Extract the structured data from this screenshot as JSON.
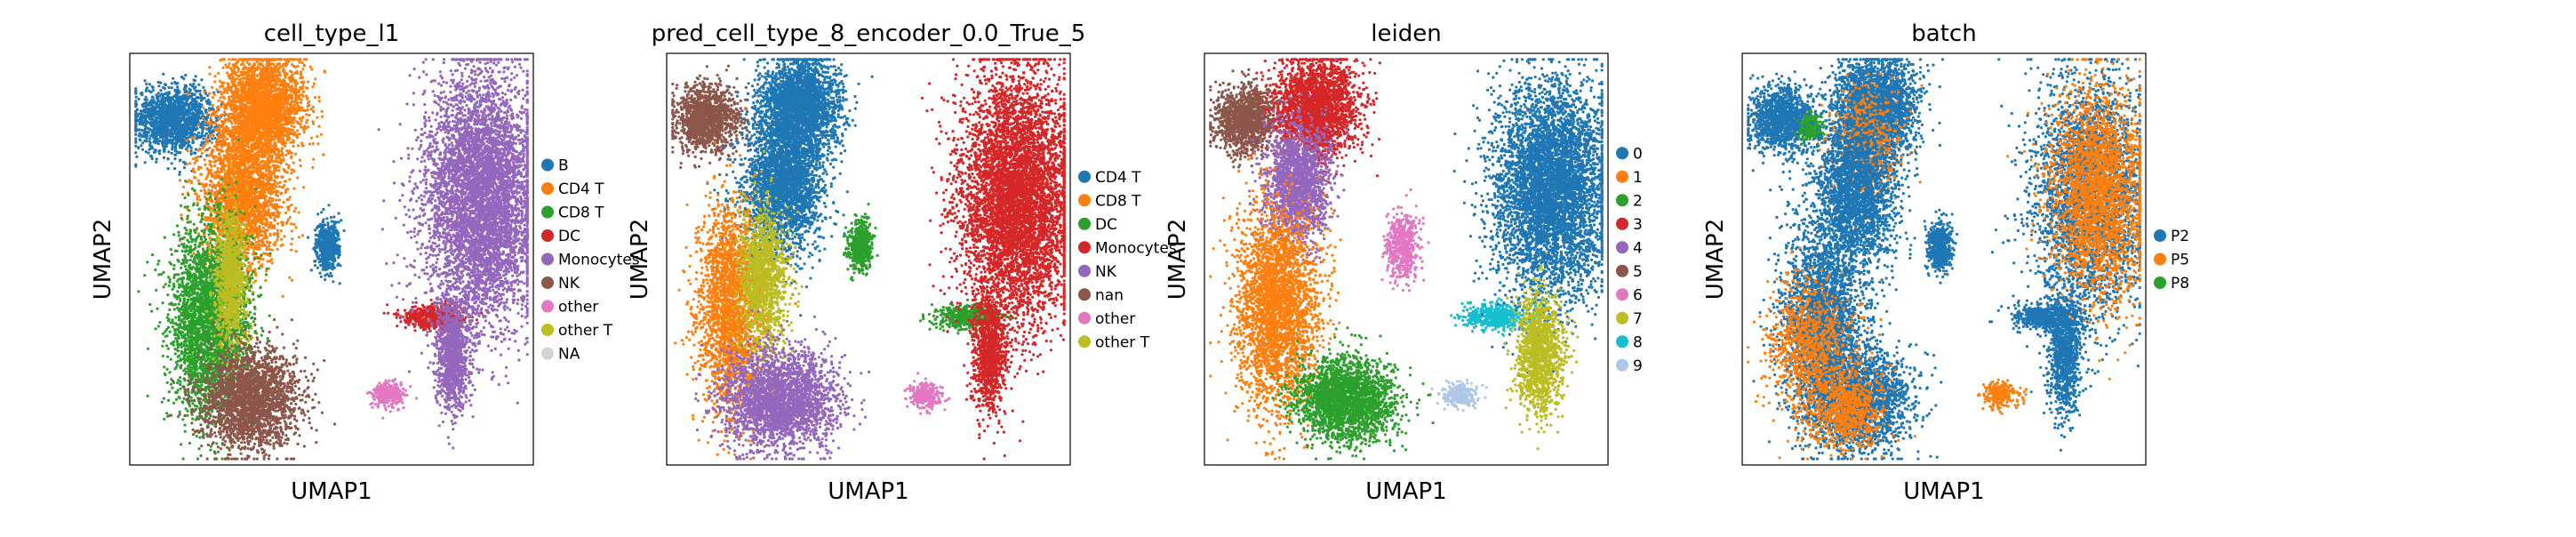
{
  "chart_data": [
    {
      "type": "scatter",
      "title": "cell_type_l1",
      "xlabel": "UMAP1",
      "ylabel": "UMAP2",
      "legend_position": "right",
      "categories": [
        "B",
        "CD4 T",
        "CD8 T",
        "DC",
        "Monocytes",
        "NK",
        "other",
        "other T",
        "NA"
      ],
      "colors": [
        "#1f77b4",
        "#ff7f0e",
        "#2ca02c",
        "#d62728",
        "#9467bd",
        "#8c564b",
        "#e377c2",
        "#bcbd22",
        "#d3d3d3"
      ],
      "clusters": [
        {
          "category": "B",
          "center": [
            0.11,
            0.84
          ],
          "spread": [
            0.05,
            0.04
          ],
          "weight": 6
        },
        {
          "category": "CD4 T",
          "center": [
            0.33,
            0.87
          ],
          "spread": [
            0.05,
            0.06
          ],
          "weight": 10
        },
        {
          "category": "CD4 T",
          "center": [
            0.28,
            0.66
          ],
          "spread": [
            0.05,
            0.09
          ],
          "weight": 10
        },
        {
          "category": "CD8 T",
          "center": [
            0.2,
            0.35
          ],
          "spread": [
            0.05,
            0.12
          ],
          "weight": 12
        },
        {
          "category": "other T",
          "center": [
            0.25,
            0.45
          ],
          "spread": [
            0.02,
            0.08
          ],
          "weight": 4
        },
        {
          "category": "NK",
          "center": [
            0.3,
            0.16
          ],
          "spread": [
            0.06,
            0.06
          ],
          "weight": 9
        },
        {
          "category": "B",
          "center": [
            0.49,
            0.53
          ],
          "spread": [
            0.015,
            0.03
          ],
          "weight": 2
        },
        {
          "category": "DC",
          "center": [
            0.75,
            0.36
          ],
          "spread": [
            0.04,
            0.015
          ],
          "weight": 2
        },
        {
          "category": "other",
          "center": [
            0.64,
            0.17
          ],
          "spread": [
            0.02,
            0.015
          ],
          "weight": 1
        },
        {
          "category": "Monocytes",
          "center": [
            0.87,
            0.65
          ],
          "spread": [
            0.07,
            0.15
          ],
          "weight": 22
        },
        {
          "category": "Monocytes",
          "center": [
            0.8,
            0.27
          ],
          "spread": [
            0.02,
            0.07
          ],
          "weight": 4
        }
      ]
    },
    {
      "type": "scatter",
      "title": "pred_cell_type_8_encoder_0.0_True_5",
      "xlabel": "UMAP1",
      "ylabel": "UMAP2",
      "legend_position": "right",
      "categories": [
        "CD4 T",
        "CD8 T",
        "DC",
        "Monocytes",
        "NK",
        "nan",
        "other",
        "other T"
      ],
      "colors": [
        "#1f77b4",
        "#ff7f0e",
        "#2ca02c",
        "#d62728",
        "#9467bd",
        "#8c564b",
        "#e377c2",
        "#bcbd22"
      ],
      "clusters": [
        {
          "category": "nan",
          "center": [
            0.1,
            0.84
          ],
          "spread": [
            0.04,
            0.04
          ],
          "weight": 5
        },
        {
          "category": "CD4 T",
          "center": [
            0.33,
            0.87
          ],
          "spread": [
            0.05,
            0.06
          ],
          "weight": 10
        },
        {
          "category": "CD4 T",
          "center": [
            0.29,
            0.68
          ],
          "spread": [
            0.05,
            0.08
          ],
          "weight": 10
        },
        {
          "category": "CD8 T",
          "center": [
            0.16,
            0.38
          ],
          "spread": [
            0.04,
            0.12
          ],
          "weight": 9
        },
        {
          "category": "other T",
          "center": [
            0.24,
            0.45
          ],
          "spread": [
            0.03,
            0.09
          ],
          "weight": 5
        },
        {
          "category": "NK",
          "center": [
            0.28,
            0.16
          ],
          "spread": [
            0.07,
            0.06
          ],
          "weight": 10
        },
        {
          "category": "DC",
          "center": [
            0.48,
            0.53
          ],
          "spread": [
            0.015,
            0.03
          ],
          "weight": 2
        },
        {
          "category": "DC",
          "center": [
            0.75,
            0.36
          ],
          "spread": [
            0.04,
            0.015
          ],
          "weight": 2
        },
        {
          "category": "other",
          "center": [
            0.64,
            0.17
          ],
          "spread": [
            0.02,
            0.015
          ],
          "weight": 1
        },
        {
          "category": "Monocytes",
          "center": [
            0.87,
            0.65
          ],
          "spread": [
            0.07,
            0.15
          ],
          "weight": 22
        },
        {
          "category": "Monocytes",
          "center": [
            0.8,
            0.27
          ],
          "spread": [
            0.02,
            0.07
          ],
          "weight": 4
        }
      ]
    },
    {
      "type": "scatter",
      "title": "leiden",
      "xlabel": "UMAP1",
      "ylabel": "UMAP2",
      "legend_position": "right",
      "categories": [
        "0",
        "1",
        "2",
        "3",
        "4",
        "5",
        "6",
        "7",
        "8",
        "9"
      ],
      "colors": [
        "#1f77b4",
        "#ff7f0e",
        "#2ca02c",
        "#d62728",
        "#9467bd",
        "#8c564b",
        "#e377c2",
        "#bcbd22",
        "#17becf",
        "#aec7e8"
      ],
      "clusters": [
        {
          "category": "5",
          "center": [
            0.1,
            0.84
          ],
          "spread": [
            0.04,
            0.04
          ],
          "weight": 5
        },
        {
          "category": "3",
          "center": [
            0.28,
            0.87
          ],
          "spread": [
            0.05,
            0.06
          ],
          "weight": 9
        },
        {
          "category": "4",
          "center": [
            0.23,
            0.68
          ],
          "spread": [
            0.04,
            0.07
          ],
          "weight": 7
        },
        {
          "category": "1",
          "center": [
            0.18,
            0.38
          ],
          "spread": [
            0.05,
            0.12
          ],
          "weight": 11
        },
        {
          "category": "2",
          "center": [
            0.35,
            0.16
          ],
          "spread": [
            0.06,
            0.05
          ],
          "weight": 9
        },
        {
          "category": "6",
          "center": [
            0.49,
            0.53
          ],
          "spread": [
            0.02,
            0.04
          ],
          "weight": 2
        },
        {
          "category": "8",
          "center": [
            0.72,
            0.36
          ],
          "spread": [
            0.04,
            0.015
          ],
          "weight": 2
        },
        {
          "category": "9",
          "center": [
            0.63,
            0.17
          ],
          "spread": [
            0.02,
            0.015
          ],
          "weight": 1
        },
        {
          "category": "0",
          "center": [
            0.86,
            0.67
          ],
          "spread": [
            0.07,
            0.13
          ],
          "weight": 20
        },
        {
          "category": "7",
          "center": [
            0.83,
            0.27
          ],
          "spread": [
            0.03,
            0.07
          ],
          "weight": 5
        }
      ]
    },
    {
      "type": "scatter",
      "title": "batch",
      "xlabel": "UMAP1",
      "ylabel": "UMAP2",
      "legend_position": "right",
      "categories": [
        "P2",
        "P5",
        "P8"
      ],
      "colors": [
        "#1f77b4",
        "#ff7f0e",
        "#2ca02c"
      ],
      "clusters": [
        {
          "category": "P2",
          "center": [
            0.1,
            0.84
          ],
          "spread": [
            0.04,
            0.04
          ],
          "weight": 5
        },
        {
          "category": "P8",
          "center": [
            0.17,
            0.82
          ],
          "spread": [
            0.015,
            0.015
          ],
          "weight": 1
        },
        {
          "category": "P2",
          "center": [
            0.33,
            0.87
          ],
          "spread": [
            0.05,
            0.06
          ],
          "weight": 10
        },
        {
          "category": "P5",
          "center": [
            0.31,
            0.78
          ],
          "spread": [
            0.04,
            0.06
          ],
          "weight": 3
        },
        {
          "category": "P2",
          "center": [
            0.28,
            0.66
          ],
          "spread": [
            0.05,
            0.09
          ],
          "weight": 9
        },
        {
          "category": "P2",
          "center": [
            0.2,
            0.35
          ],
          "spread": [
            0.05,
            0.12
          ],
          "weight": 10
        },
        {
          "category": "P5",
          "center": [
            0.17,
            0.28
          ],
          "spread": [
            0.05,
            0.08
          ],
          "weight": 4
        },
        {
          "category": "P2",
          "center": [
            0.3,
            0.16
          ],
          "spread": [
            0.06,
            0.06
          ],
          "weight": 7
        },
        {
          "category": "P5",
          "center": [
            0.26,
            0.14
          ],
          "spread": [
            0.05,
            0.05
          ],
          "weight": 3
        },
        {
          "category": "P2",
          "center": [
            0.49,
            0.53
          ],
          "spread": [
            0.015,
            0.03
          ],
          "weight": 2
        },
        {
          "category": "P2",
          "center": [
            0.75,
            0.36
          ],
          "spread": [
            0.04,
            0.015
          ],
          "weight": 2
        },
        {
          "category": "P5",
          "center": [
            0.64,
            0.17
          ],
          "spread": [
            0.02,
            0.015
          ],
          "weight": 1
        },
        {
          "category": "P2",
          "center": [
            0.86,
            0.66
          ],
          "spread": [
            0.07,
            0.14
          ],
          "weight": 12
        },
        {
          "category": "P5",
          "center": [
            0.88,
            0.66
          ],
          "spread": [
            0.06,
            0.13
          ],
          "weight": 10
        },
        {
          "category": "P2",
          "center": [
            0.8,
            0.27
          ],
          "spread": [
            0.02,
            0.07
          ],
          "weight": 4
        }
      ]
    }
  ]
}
